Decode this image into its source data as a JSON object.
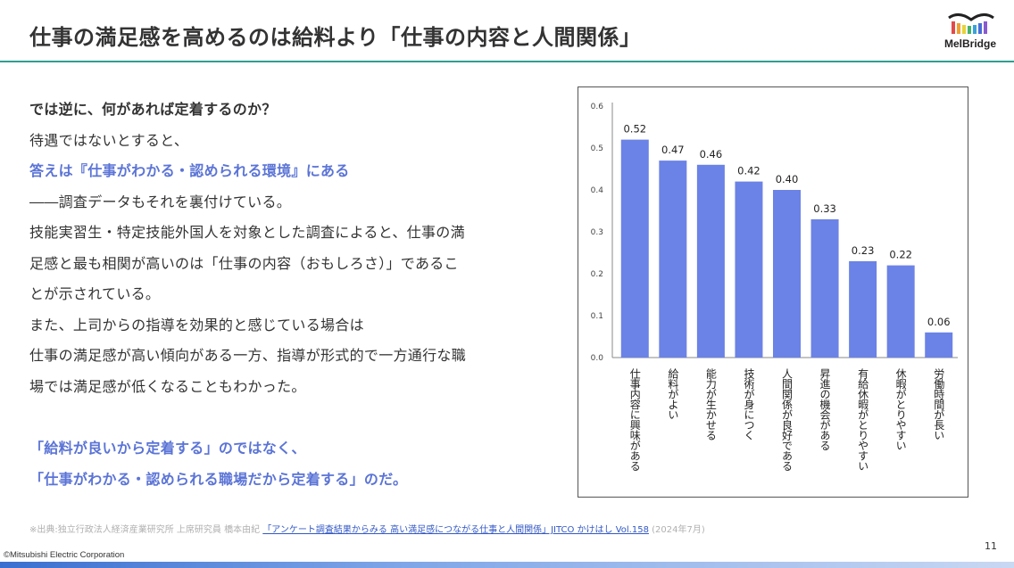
{
  "header": {
    "title": "仕事の満足感を高めるのは給料より「仕事の内容と人間関係」",
    "logo_text": "MelBridge",
    "accent_color": "#2f9e8f"
  },
  "body": {
    "lines": [
      "では逆に、何があれば定着するのか？",
      "待遇ではないとすると、",
      "答えは『仕事がわかる・認められる環境』にある",
      "――調査データもそれを裏付けている。",
      "技能実習生・特定技能外国人を対象とした調査によると、仕事の満",
      "足感と最も相関が高いのは「仕事の内容（おもしろさ）」であるこ",
      "とが示されている。",
      "また、上司からの指導を効果的と感じている場合は",
      "仕事の満足感が高い傾向がある一方、指導が形式的で一方通行な職",
      "場では満足感が低くなることもわかった。"
    ],
    "conclusion": [
      "「給料が良いから定着する」のではなく、",
      "「仕事がわかる・認められる職場だから定着する」のだ。"
    ],
    "accent_color": "#5b74d6"
  },
  "chart_data": {
    "type": "bar",
    "categories": [
      "仕事内容に興味がある",
      "給料がよい",
      "能力が生かせる",
      "技術が身につく",
      "人間関係が良好である",
      "昇進の機会がある",
      "有給休暇がとりやすい",
      "休暇がとりやすい",
      "労働時間が長い"
    ],
    "values": [
      0.52,
      0.47,
      0.46,
      0.42,
      0.4,
      0.33,
      0.23,
      0.22,
      0.06
    ],
    "value_labels": [
      "0.52",
      "0.47",
      "0.46",
      "0.42",
      "0.40",
      "0.33",
      "0.23",
      "0.22",
      "0.06"
    ],
    "yticks": [
      "0.6",
      "0.5",
      "0.4",
      "0.3",
      "0.2",
      "0.1",
      "0.0"
    ],
    "ylim": [
      0,
      0.6
    ],
    "bar_color": "#6b82e6",
    "grid": false,
    "title": "",
    "xlabel": "",
    "ylabel": ""
  },
  "source": {
    "prefix": "※出典:独立行政法人経済産業研究所 上席研究員 橋本由紀",
    "link": "「アンケート調査結果からみる 高い満足感につながる仕事と人間関係」JITCO かけはし Vol.158",
    "suffix": "(2024年7月)"
  },
  "footer": {
    "copyright": "©Mitsubishi Electric Corporation",
    "page": "11"
  }
}
